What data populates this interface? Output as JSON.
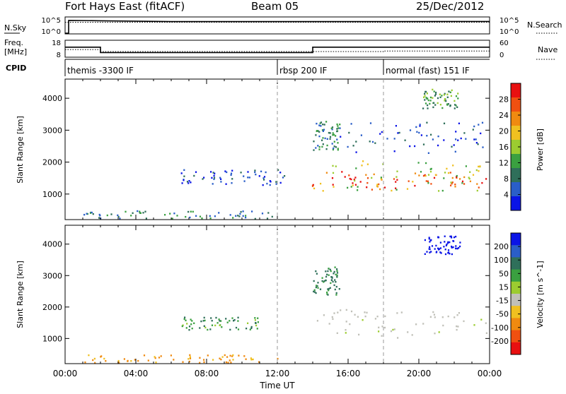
{
  "header": {
    "station": "Fort Hays East (fitACF)",
    "beam": "Beam 05",
    "date": "25/Dec/2012"
  },
  "nsky_panel": {
    "left_label": "N.Sky",
    "right_label": "N.Search",
    "left_ticks": [
      "10^5",
      "10^0"
    ],
    "right_ticks": [
      "10^5",
      "10^0"
    ]
  },
  "freq_panel": {
    "left_label_lines": [
      "Freq.",
      "[MHz]"
    ],
    "right_label": "Nave",
    "left_ticks": [
      "18",
      "8"
    ],
    "right_ticks": [
      "60",
      "0"
    ]
  },
  "cpid": {
    "label": "CPID",
    "segments": [
      {
        "text": "themis -3300 IF",
        "start_hour": 0,
        "end_hour": 12
      },
      {
        "text": "rbsp 200 IF",
        "start_hour": 12,
        "end_hour": 18
      },
      {
        "text": "normal (fast) 151 IF",
        "start_hour": 18,
        "end_hour": 24
      }
    ]
  },
  "chart_data": [
    {
      "type": "line",
      "name": "nsky-nsearch",
      "x_unit": "hours UT",
      "ylim": [
        0,
        5
      ],
      "series": [
        {
          "name": "N.Sky",
          "style": "solid",
          "x": [
            0,
            0.2,
            0.2,
            2,
            6,
            12,
            18,
            24
          ],
          "y": [
            0,
            0,
            4.3,
            4.2,
            3.9,
            3.9,
            3.9,
            3.95
          ]
        },
        {
          "name": "N.Search",
          "style": "dotted",
          "x": [
            0,
            24
          ],
          "y": [
            3.7,
            3.7
          ]
        }
      ]
    },
    {
      "type": "line",
      "name": "freq-nave",
      "x_unit": "hours UT",
      "series": [
        {
          "name": "Freq",
          "style": "solid",
          "ylim": [
            8,
            18
          ],
          "x": [
            0,
            2,
            2,
            14,
            14,
            24
          ],
          "y": [
            14.3,
            14.3,
            10.6,
            10.6,
            14.3,
            14.3
          ]
        },
        {
          "name": "Nave",
          "style": "dotted",
          "ylim": [
            0,
            60
          ],
          "x": [
            0,
            2,
            2,
            18,
            18,
            24
          ],
          "y": [
            28,
            28,
            20,
            20,
            22,
            22
          ]
        }
      ]
    },
    {
      "type": "heatmap",
      "name": "power",
      "xlabel": "",
      "ylabel": "Slant Range [km]",
      "xlim": [
        0,
        24
      ],
      "ylim": [
        200,
        4600
      ],
      "yticks": [
        1000,
        2000,
        3000,
        4000
      ],
      "colorbar": {
        "label": "Power [dB]",
        "ticks": [
          "4",
          "8",
          "12",
          "16",
          "20",
          "24",
          "28"
        ],
        "colors": [
          "#0a14e6",
          "#2a5ec8",
          "#2f6f5a",
          "#3aa040",
          "#9ccc30",
          "#f0c020",
          "#f08a10",
          "#f05010",
          "#e81010"
        ]
      },
      "regions": [
        {
          "hours": [
            13.9,
            23.8
          ],
          "range_km": [
            1200,
            1700
          ],
          "level": 7
        },
        {
          "hours": [
            14.0,
            23.5
          ],
          "range_km": [
            1100,
            2100
          ],
          "level": 4
        },
        {
          "hours": [
            6.5,
            12.5
          ],
          "range_km": [
            1300,
            1800
          ],
          "level": 1
        },
        {
          "hours": [
            14.0,
            15.5
          ],
          "range_km": [
            2400,
            3300
          ],
          "level": 2
        },
        {
          "hours": [
            20.2,
            22.3
          ],
          "range_km": [
            3700,
            4300
          ],
          "level": 3
        },
        {
          "hours": [
            15.5,
            23.8
          ],
          "range_km": [
            2300,
            3300
          ],
          "level": 1
        },
        {
          "hours": [
            1.0,
            12.0
          ],
          "range_km": [
            250,
            500
          ],
          "level": 2
        }
      ]
    },
    {
      "type": "heatmap",
      "name": "velocity",
      "xlabel": "Time UT",
      "ylabel": "Slant Range [km]",
      "xlim": [
        0,
        24
      ],
      "ylim": [
        200,
        4600
      ],
      "xticks": [
        "00:00",
        "04:00",
        "08:00",
        "12:00",
        "16:00",
        "20:00",
        "00:00"
      ],
      "yticks": [
        1000,
        2000,
        3000,
        4000
      ],
      "colorbar": {
        "label": "Velocity [m s^-1]",
        "ticks": [
          "200",
          "100",
          "50",
          "15",
          "-15",
          "-50",
          "-100",
          "-200"
        ],
        "colors": [
          "#0a14e6",
          "#2a5ec8",
          "#2f6f5a",
          "#3aa040",
          "#9ccc30",
          "#c0c0b8",
          "#f0c020",
          "#f08a10",
          "#f05010",
          "#e81010"
        ]
      },
      "regions": [
        {
          "hours": [
            14.0,
            23.8
          ],
          "range_km": [
            1100,
            1900
          ],
          "value": 0
        },
        {
          "hours": [
            20.3,
            22.3
          ],
          "range_km": [
            3700,
            4300
          ],
          "value": 220
        },
        {
          "hours": [
            6.5,
            11.0
          ],
          "range_km": [
            1300,
            1700
          ],
          "value": 30
        },
        {
          "hours": [
            14.0,
            15.5
          ],
          "range_km": [
            2400,
            3300
          ],
          "value": 40
        },
        {
          "hours": [
            1.0,
            12.0
          ],
          "range_km": [
            250,
            500
          ],
          "value": -60
        }
      ]
    }
  ]
}
